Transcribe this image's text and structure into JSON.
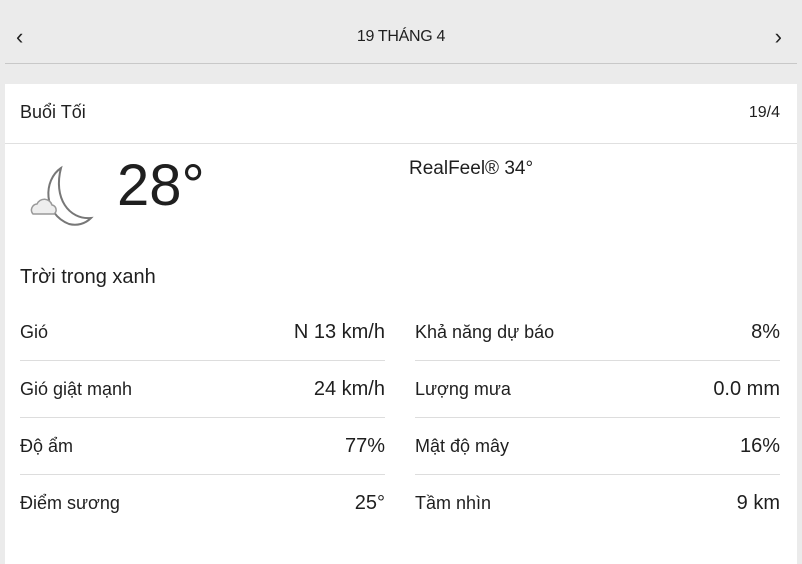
{
  "nav": {
    "title": "19 THÁNG 4",
    "prev_icon": "chevron-left-icon",
    "next_icon": "chevron-right-icon"
  },
  "card": {
    "label": "Buổi Tối",
    "date": "19/4",
    "icon": "moon-cloud-icon",
    "temperature": "28°",
    "realfeel": "RealFeel® 34°",
    "phrase": "Trời trong xanh",
    "left": [
      {
        "label": "Gió",
        "value": "N 13 km/h"
      },
      {
        "label": "Gió giật mạnh",
        "value": "24 km/h"
      },
      {
        "label": "Độ ẩm",
        "value": "77%"
      },
      {
        "label": "Điểm sương",
        "value": "25°"
      }
    ],
    "right": [
      {
        "label": "Khả năng dự báo",
        "value": "8%"
      },
      {
        "label": "Lượng mưa",
        "value": "0.0 mm"
      },
      {
        "label": "Mật độ mây",
        "value": "16%"
      },
      {
        "label": "Tầm nhìn",
        "value": "9 km"
      }
    ]
  }
}
